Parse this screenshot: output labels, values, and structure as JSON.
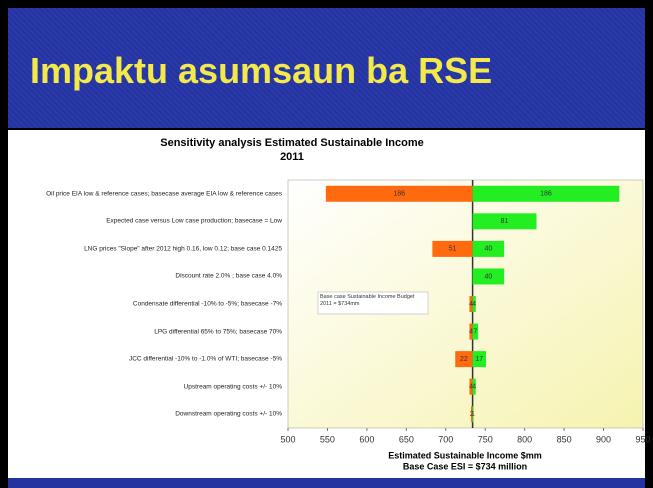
{
  "header": {
    "title": "Impaktu asumsaun ba RSE"
  },
  "chart_data": {
    "type": "tornado",
    "title": "Sensitivity analysis Estimated Sustainable Income",
    "subtitle": "2011",
    "categories": [
      "Oil price EIA low & reference cases; basecase average EIA low & reference cases",
      "Expected case versus Low case production; basecase = Low",
      "LNG prices \"Slope\" after 2012 high 0.16, low 0.12; base case 0.1425",
      "Discount rate 2.0% ; base case 4.0%",
      "Condensate differential -10% to -5%; basecase -7%",
      "LPG differential 65% to 75%; basecase 70%",
      "JCC differential -10% to -1.0% of WTI; basecase -5%",
      "Upstream operating costs +/- 10%",
      "Downstream operating costs +/- 10%"
    ],
    "base": 734,
    "series": [
      {
        "color": "#ff6a0e",
        "values": [
          186,
          null,
          51,
          null,
          4,
          4,
          22,
          4,
          2
        ]
      },
      {
        "color": "#22ee22",
        "values": [
          186,
          81,
          40,
          40,
          4,
          7,
          17,
          4,
          1
        ]
      }
    ],
    "xlim": [
      500,
      950
    ],
    "xticks": [
      500,
      550,
      600,
      650,
      700,
      750,
      800,
      850,
      900,
      950
    ],
    "annotation": "Base case Sustainable Income Budget 2011 = $734mm",
    "xlabel": "Estimated Sustainable Income $mm",
    "xlabel2": "Base Case ESI = $734 million"
  }
}
